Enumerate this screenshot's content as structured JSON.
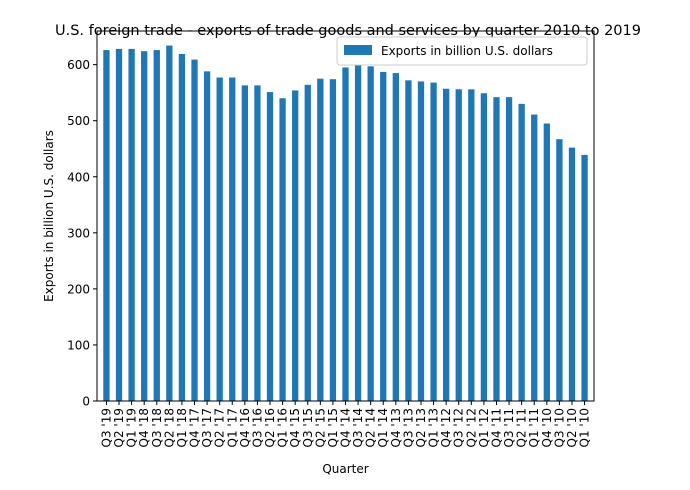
{
  "chart_data": {
    "type": "bar",
    "title": "U.S. foreign trade - exports of trade goods and services by quarter 2010 to 2019",
    "xlabel": "Quarter",
    "ylabel": "Exports in billion U.S. dollars",
    "ylim": [
      0,
      660
    ],
    "yticks": [
      0,
      100,
      200,
      300,
      400,
      500,
      600
    ],
    "grid": false,
    "legend_position": "top-right",
    "bar_color": "#1f77b4",
    "categories": [
      "Q3 '19",
      "Q2 '19",
      "Q1 '19",
      "Q4 '18",
      "Q3 '18",
      "Q2 '18",
      "Q1 '18",
      "Q4 '17",
      "Q3 '17",
      "Q2 '17",
      "Q1 '17",
      "Q4 '16",
      "Q3 '16",
      "Q2 '16",
      "Q1 '16",
      "Q4 '15",
      "Q3 '15",
      "Q2 '15",
      "Q1 '15",
      "Q4 '14",
      "Q3 '14",
      "Q2 '14",
      "Q1 '14",
      "Q4 '13",
      "Q3 '13",
      "Q2 '13",
      "Q1 '13",
      "Q4 '12",
      "Q3 '12",
      "Q2 '12",
      "Q1 '12",
      "Q4 '11",
      "Q3 '11",
      "Q2 '11",
      "Q1 '11",
      "Q4 '10",
      "Q3 '10",
      "Q2 '10",
      "Q1 '10"
    ],
    "series": [
      {
        "name": "Exports in billion U.S. dollars",
        "values": [
          626,
          628,
          628,
          624,
          626,
          634,
          619,
          609,
          588,
          577,
          577,
          563,
          563,
          551,
          540,
          554,
          564,
          575,
          574,
          595,
          599,
          597,
          587,
          585,
          572,
          570,
          568,
          557,
          556,
          556,
          549,
          542,
          542,
          530,
          511,
          495,
          467,
          452,
          439
        ]
      }
    ]
  }
}
